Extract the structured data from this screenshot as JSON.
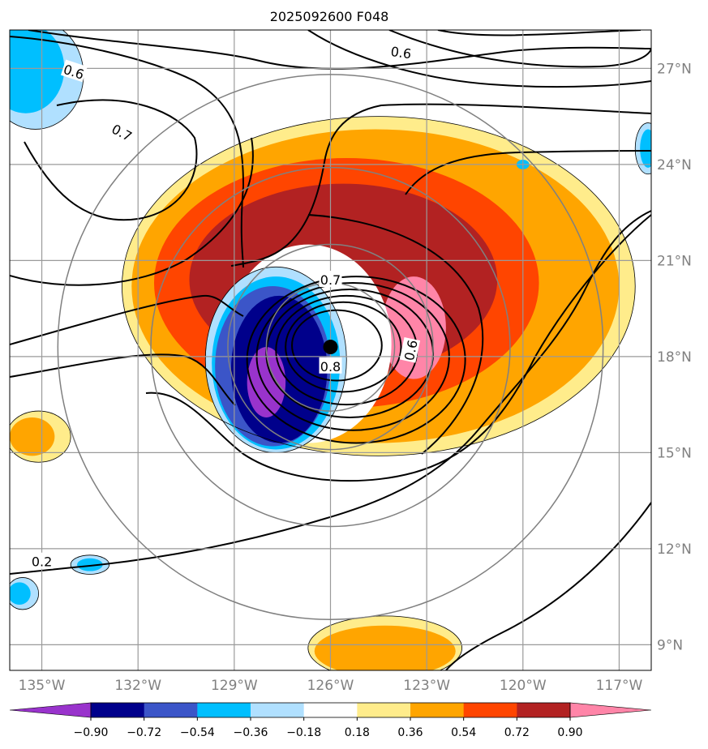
{
  "chart_data": {
    "type": "contour-map",
    "title": "2025092600 F048",
    "xlabel": "",
    "ylabel": "",
    "xlim": [
      -136,
      -116
    ],
    "ylim": [
      8.2,
      28.2
    ],
    "lon_ticks": [
      {
        "value": -135,
        "label": "135°W"
      },
      {
        "value": -132,
        "label": "132°W"
      },
      {
        "value": -129,
        "label": "129°W"
      },
      {
        "value": -126,
        "label": "126°W"
      },
      {
        "value": -123,
        "label": "123°W"
      },
      {
        "value": -120,
        "label": "120°W"
      },
      {
        "value": -117,
        "label": "117°W"
      }
    ],
    "lat_ticks": [
      {
        "value": 9,
        "label": "9°N"
      },
      {
        "value": 12,
        "label": "12°N"
      },
      {
        "value": 15,
        "label": "15°N"
      },
      {
        "value": 18,
        "label": "18°N"
      },
      {
        "value": 21,
        "label": "21°N"
      },
      {
        "value": 24,
        "label": "24°N"
      },
      {
        "value": 27,
        "label": "27°N"
      }
    ],
    "storm_center": {
      "lon": -126.0,
      "lat": 18.3
    },
    "range_rings_deg": [
      2.0,
      3.2,
      5.6,
      8.5
    ],
    "colorbar": {
      "levels": [
        -0.9,
        -0.72,
        -0.54,
        -0.36,
        -0.18,
        0.18,
        0.36,
        0.54,
        0.72,
        0.9
      ],
      "tick_labels": [
        "−0.90",
        "−0.72",
        "−0.54",
        "−0.36",
        "−0.18",
        "0.18",
        "0.36",
        "0.54",
        "0.72",
        "0.90"
      ],
      "colors": [
        "#9933cc",
        "#00008b",
        "#3b55c8",
        "#00bfff",
        "#b0e0ff",
        "#ffffff",
        "#ffec8b",
        "#ffa500",
        "#ff4500",
        "#b22222",
        "#ff85a8"
      ]
    },
    "contour_labels": [
      {
        "text": "0.6",
        "lon": -134.0,
        "lat": 26.9,
        "rot": 18
      },
      {
        "text": "0.7",
        "lon": -132.5,
        "lat": 25.0,
        "rot": 28
      },
      {
        "text": "0.6",
        "lon": -123.8,
        "lat": 27.5,
        "rot": 8
      },
      {
        "text": "0.7",
        "lon": -126.0,
        "lat": 20.4,
        "rot": 0
      },
      {
        "text": "0.8",
        "lon": -126.0,
        "lat": 17.7,
        "rot": 0
      },
      {
        "text": "0.6",
        "lon": -123.5,
        "lat": 18.2,
        "rot": -78
      },
      {
        "text": "0.2",
        "lon": -135.0,
        "lat": 11.6,
        "rot": 0
      }
    ],
    "shaded_regions": [
      {
        "color": "#ffec8b",
        "lon": -124.5,
        "lat": 20.2,
        "rx": 8.0,
        "ry": 5.3
      },
      {
        "color": "#ffa500",
        "lon": -124.6,
        "lat": 20.2,
        "rx": 7.6,
        "ry": 4.9
      },
      {
        "color": "#ff4500",
        "lon": -125.5,
        "lat": 20.3,
        "rx": 6.0,
        "ry": 3.9
      },
      {
        "color": "#b22222",
        "lon": -125.6,
        "lat": 20.4,
        "rx": 4.8,
        "ry": 3.0
      },
      {
        "color": "#ff85a8",
        "lon": -123.4,
        "lat": 18.9,
        "rx": 1.0,
        "ry": 1.6
      },
      {
        "color": "#ffffff",
        "lon": -126.7,
        "lat": 18.4,
        "rx": 2.6,
        "ry": 3.1
      },
      {
        "color": "#b0e0ff",
        "lon": -127.7,
        "lat": 17.9,
        "rx": 2.2,
        "ry": 2.9
      },
      {
        "color": "#00bfff",
        "lon": -127.7,
        "lat": 17.8,
        "rx": 2.0,
        "ry": 2.7
      },
      {
        "color": "#3b55c8",
        "lon": -127.8,
        "lat": 17.7,
        "rx": 1.8,
        "ry": 2.5
      },
      {
        "color": "#00008b",
        "lon": -127.6,
        "lat": 17.6,
        "rx": 1.5,
        "ry": 2.3
      },
      {
        "color": "#9933cc",
        "lon": -128.0,
        "lat": 17.2,
        "rx": 0.6,
        "ry": 1.1
      },
      {
        "color": "#b0e0ff",
        "lon": -135.2,
        "lat": 26.8,
        "rx": 1.5,
        "ry": 1.7
      },
      {
        "color": "#00bfff",
        "lon": -135.5,
        "lat": 27.0,
        "rx": 1.2,
        "ry": 1.4
      },
      {
        "color": "#ffec8b",
        "lon": -135.1,
        "lat": 15.5,
        "rx": 1.0,
        "ry": 0.8
      },
      {
        "color": "#ffa500",
        "lon": -135.3,
        "lat": 15.5,
        "rx": 0.7,
        "ry": 0.6
      },
      {
        "color": "#ffec8b",
        "lon": -124.3,
        "lat": 8.9,
        "rx": 2.4,
        "ry": 1.0
      },
      {
        "color": "#ffa500",
        "lon": -124.3,
        "lat": 8.8,
        "rx": 2.2,
        "ry": 0.8
      },
      {
        "color": "#b0e0ff",
        "lon": -133.5,
        "lat": 11.5,
        "rx": 0.6,
        "ry": 0.3
      },
      {
        "color": "#00bfff",
        "lon": -133.5,
        "lat": 11.5,
        "rx": 0.4,
        "ry": 0.2
      },
      {
        "color": "#b0e0ff",
        "lon": -135.6,
        "lat": 10.6,
        "rx": 0.5,
        "ry": 0.5
      },
      {
        "color": "#00bfff",
        "lon": -135.7,
        "lat": 10.6,
        "rx": 0.35,
        "ry": 0.35
      },
      {
        "color": "#b0e0ff",
        "lon": -116.1,
        "lat": 24.5,
        "rx": 0.4,
        "ry": 0.8
      },
      {
        "color": "#00bfff",
        "lon": -116.1,
        "lat": 24.5,
        "rx": 0.25,
        "ry": 0.6
      },
      {
        "color": "#00bfff",
        "lon": -120.0,
        "lat": 24.0,
        "rx": 0.2,
        "ry": 0.15
      }
    ],
    "contour_lines": [
      {
        "name": "vortex-contour-1",
        "lon": -125.2,
        "lat": 17.9,
        "rx": 3.4,
        "ry": 2.6
      },
      {
        "name": "vortex-contour-2",
        "lon": -125.3,
        "lat": 18.0,
        "rx": 3.0,
        "ry": 2.3
      },
      {
        "name": "vortex-contour-3",
        "lon": -125.4,
        "lat": 18.1,
        "rx": 2.6,
        "ry": 2.0
      },
      {
        "name": "vortex-contour-4",
        "lon": -125.5,
        "lat": 18.2,
        "rx": 2.2,
        "ry": 1.7
      },
      {
        "name": "vortex-contour-5",
        "lon": -125.6,
        "lat": 18.3,
        "rx": 1.8,
        "ry": 1.4
      },
      {
        "name": "vortex-contour-6",
        "lon": -125.8,
        "lat": 18.35,
        "rx": 1.4,
        "ry": 1.1
      }
    ]
  }
}
